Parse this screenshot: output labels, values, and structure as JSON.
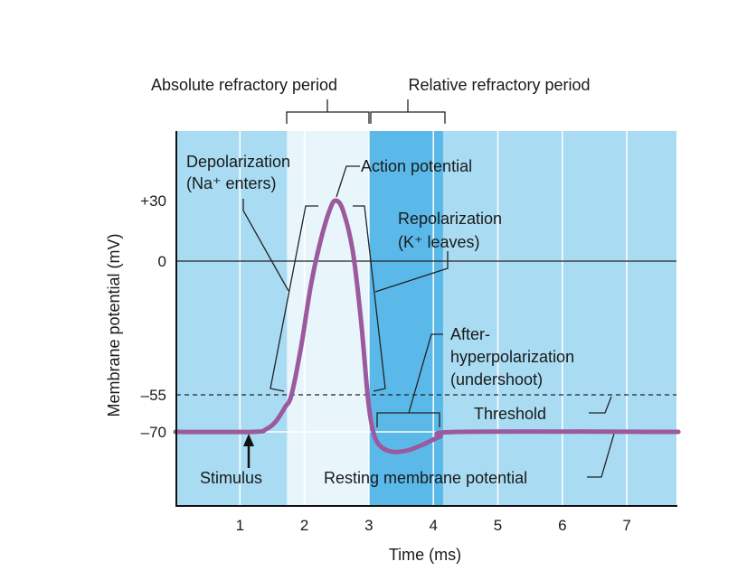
{
  "chart_data": {
    "type": "line",
    "xlabel": "Time (ms)",
    "ylabel": "Membrane potential (mV)",
    "xlim": [
      0,
      7.8
    ],
    "x_ticks": [
      "1",
      "2",
      "3",
      "4",
      "5",
      "6",
      "7"
    ],
    "y_ticks": [
      "+30",
      "0",
      "–55",
      "–70"
    ],
    "y_tick_values": [
      30,
      0,
      -55,
      -70
    ],
    "reference_lines": [
      {
        "name": "zero",
        "value": 0,
        "style": "solid"
      },
      {
        "name": "threshold",
        "value": -55,
        "style": "dashed"
      }
    ],
    "series": [
      {
        "name": "Membrane potential",
        "color": "#9b5a9e",
        "points": [
          [
            0,
            -70
          ],
          [
            1.2,
            -70
          ],
          [
            1.4,
            -69
          ],
          [
            1.55,
            -66
          ],
          [
            1.7,
            -60
          ],
          [
            1.8,
            -55
          ],
          [
            1.95,
            -35
          ],
          [
            2.1,
            -10
          ],
          [
            2.25,
            10
          ],
          [
            2.4,
            26
          ],
          [
            2.49,
            30
          ],
          [
            2.6,
            25
          ],
          [
            2.75,
            5
          ],
          [
            2.88,
            -25
          ],
          [
            2.98,
            -55
          ],
          [
            3.05,
            -68
          ],
          [
            3.15,
            -75
          ],
          [
            3.35,
            -78
          ],
          [
            3.6,
            -77.5
          ],
          [
            3.85,
            -75
          ],
          [
            4.1,
            -72
          ],
          [
            4.4,
            -70
          ],
          [
            7.8,
            -70
          ]
        ]
      }
    ],
    "regions": [
      {
        "label": "Absolute refractory period",
        "from": 1.73,
        "to": 3.0,
        "color": "#e8f6fc"
      },
      {
        "label": "Relative refractory period",
        "from": 3.0,
        "to": 4.15,
        "color": "#5bb9e9"
      }
    ],
    "background_color": "#a9dcf3",
    "annotations": {
      "depolarization": [
        "Depolarization",
        "(Na⁺ enters)"
      ],
      "action_potential": "Action potential",
      "repolarization": [
        "Repolarization",
        "(K⁺ leaves)"
      ],
      "after_hyperpolarization": [
        "After-",
        "hyperpolarization",
        "(undershoot)"
      ],
      "threshold": "Threshold",
      "stimulus": "Stimulus",
      "resting": "Resting membrane potential"
    }
  }
}
